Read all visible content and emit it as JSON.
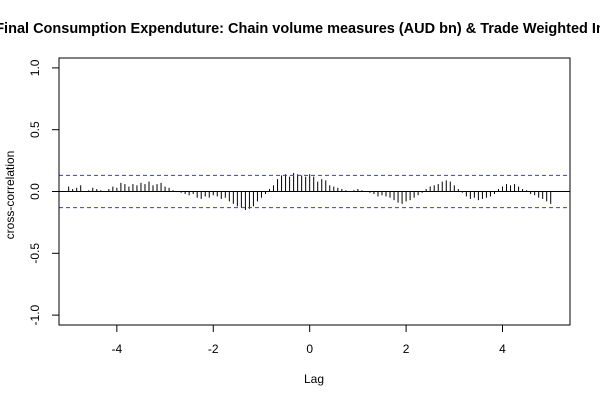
{
  "chart_data": {
    "type": "bar",
    "title": "Final Consumption Expenduture: Chain volume measures (AUD bn) & Trade Weighted In",
    "xlabel": "Lag",
    "ylabel": "cross-correlation",
    "xlim": [
      -5.2,
      5.4
    ],
    "ylim": [
      -1.08,
      1.08
    ],
    "xticks": [
      -4,
      -2,
      0,
      2,
      4
    ],
    "yticks": [
      -1.0,
      -0.5,
      0.0,
      0.5,
      1.0
    ],
    "xtick_labels": [
      "-4",
      "-2",
      "0",
      "2",
      "4"
    ],
    "ytick_labels": [
      "-1.0",
      "-0.5",
      "0.0",
      "0.5",
      "1.0"
    ],
    "confidence_limit": 0.13,
    "lag_step": 0.08333,
    "values": [
      0.04,
      0.02,
      0.03,
      0.05,
      0.0,
      0.01,
      0.03,
      0.02,
      0.01,
      0.0,
      0.02,
      0.04,
      0.03,
      0.07,
      0.06,
      0.04,
      0.06,
      0.05,
      0.07,
      0.06,
      0.08,
      0.05,
      0.06,
      0.07,
      0.04,
      0.03,
      0.01,
      0.0,
      -0.01,
      -0.02,
      -0.03,
      -0.02,
      -0.05,
      -0.06,
      -0.04,
      -0.05,
      -0.03,
      -0.04,
      -0.06,
      -0.05,
      -0.08,
      -0.1,
      -0.12,
      -0.13,
      -0.15,
      -0.14,
      -0.12,
      -0.08,
      -0.05,
      -0.02,
      0.02,
      0.05,
      0.1,
      0.13,
      0.14,
      0.12,
      0.15,
      0.14,
      0.13,
      0.12,
      0.14,
      0.12,
      0.08,
      0.1,
      0.09,
      0.05,
      0.04,
      0.03,
      0.02,
      0.01,
      0.0,
      0.01,
      0.02,
      0.01,
      0.0,
      -0.01,
      -0.02,
      -0.04,
      -0.03,
      -0.04,
      -0.05,
      -0.07,
      -0.09,
      -0.1,
      -0.08,
      -0.07,
      -0.05,
      -0.03,
      -0.01,
      0.02,
      0.04,
      0.05,
      0.06,
      0.08,
      0.09,
      0.08,
      0.05,
      0.02,
      -0.01,
      -0.04,
      -0.06,
      -0.05,
      -0.07,
      -0.06,
      -0.05,
      -0.04,
      -0.02,
      0.02,
      0.04,
      0.06,
      0.05,
      0.06,
      0.04,
      0.02,
      0.01,
      -0.02,
      -0.03,
      -0.05,
      -0.06,
      -0.08,
      -0.1
    ]
  }
}
